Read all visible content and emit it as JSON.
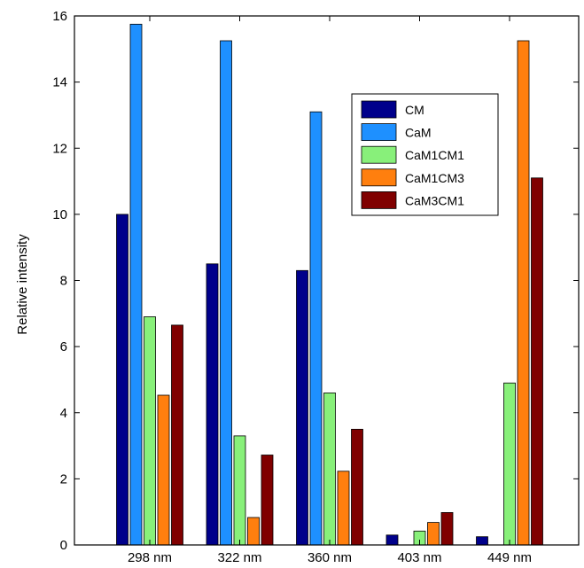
{
  "chart_data": {
    "type": "bar",
    "title": "",
    "xlabel": "",
    "ylabel": "Relative intensity",
    "ylim": [
      0,
      16
    ],
    "yticks": [
      0,
      2,
      4,
      6,
      8,
      10,
      12,
      14,
      16
    ],
    "categories": [
      "298 nm",
      "322 nm",
      "360 nm",
      "403 nm",
      "449 nm"
    ],
    "grid": false,
    "legend_position": "top-right",
    "series": [
      {
        "name": "CM",
        "color": "#00008B",
        "values": [
          10.0,
          8.5,
          8.3,
          0.3,
          0.25
        ]
      },
      {
        "name": "CaM",
        "color": "#1E90FF",
        "values": [
          15.75,
          15.25,
          13.1,
          0,
          0
        ]
      },
      {
        "name": "CaM1CM1",
        "color": "#88F07A",
        "values": [
          6.9,
          3.3,
          4.6,
          0.42,
          4.9
        ]
      },
      {
        "name": "CaM1CM3",
        "color": "#FF7F0E",
        "values": [
          4.53,
          0.83,
          2.23,
          0.68,
          15.25
        ]
      },
      {
        "name": "CaM3CM1",
        "color": "#800000",
        "values": [
          6.65,
          2.72,
          3.5,
          0.98,
          11.1
        ]
      }
    ]
  }
}
